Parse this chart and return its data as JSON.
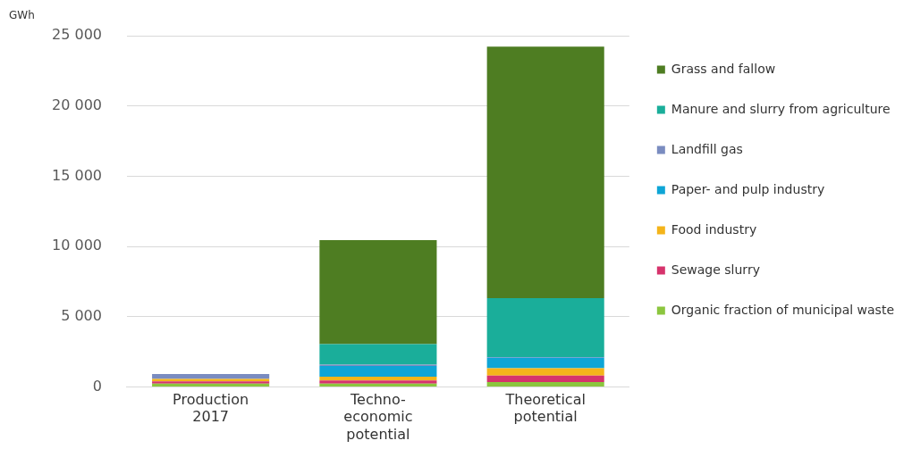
{
  "chart_data": {
    "type": "bar",
    "stacked": true,
    "ylabel": "GWh",
    "categories": [
      "Production 2017",
      "Techno-economic potential",
      "Theoretical potential"
    ],
    "series": [
      {
        "name": "Organic fraction of municipal waste",
        "color": "#8cc63f",
        "values": [
          230,
          230,
          340
        ]
      },
      {
        "name": "Sewage slurry",
        "color": "#d6336c",
        "values": [
          160,
          230,
          460
        ]
      },
      {
        "name": "Food industry",
        "color": "#f4b41a",
        "values": [
          180,
          270,
          530
        ]
      },
      {
        "name": "Paper- and pulp industry",
        "color": "#0ea5d6",
        "values": [
          0,
          750,
          740
        ]
      },
      {
        "name": "Landfill gas",
        "color": "#7a8cc0",
        "values": [
          340,
          100,
          50
        ]
      },
      {
        "name": "Manure and slurry from agriculture",
        "color": "#1aae9a",
        "values": [
          0,
          1470,
          4200
        ]
      },
      {
        "name": "Grass and fallow",
        "color": "#4e7d22",
        "values": [
          0,
          7400,
          17900
        ]
      }
    ],
    "ylim": [
      0,
      25000
    ],
    "yticks": [
      {
        "value": 0,
        "label": "0"
      },
      {
        "value": 5000,
        "label": "5 000"
      },
      {
        "value": 10000,
        "label": "10 000"
      },
      {
        "value": 15000,
        "label": "15 000"
      },
      {
        "value": 20000,
        "label": "20 000"
      },
      {
        "value": 25000,
        "label": "25 000"
      }
    ],
    "grid": "y",
    "legend": "right"
  }
}
